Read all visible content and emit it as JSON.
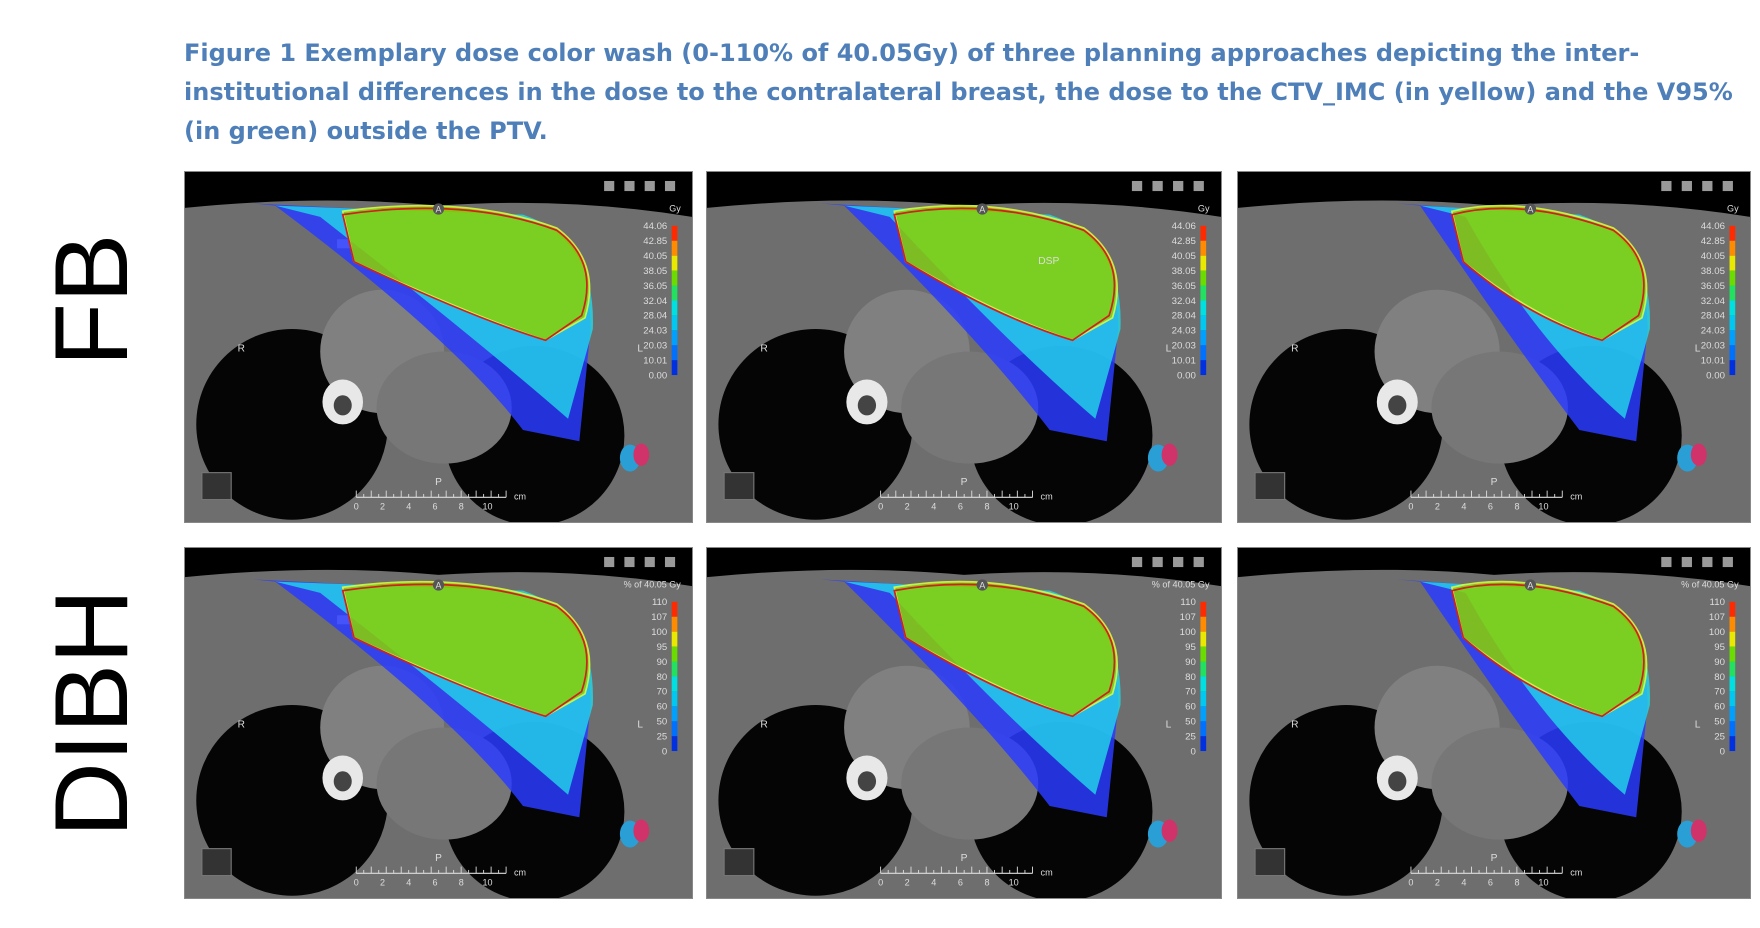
{
  "caption": "Figure 1 Exemplary dose color wash (0-110% of 40.05Gy) of three planning approaches depicting the inter-institutional differences in the dose to the contralateral breast, the dose to the CTV_IMC (in yellow) and the V95% (in green) outside the PTV.",
  "orientation": {
    "anterior": "A",
    "posterior": "P",
    "right": "R",
    "left": "L"
  },
  "scale": {
    "ticks": [
      "0",
      "2",
      "4",
      "6",
      "8",
      "10"
    ],
    "unit": "cm"
  },
  "rows": [
    {
      "label": "FB",
      "unit": "Gy",
      "legend": [
        "44.06",
        "42.85",
        "40.05",
        "38.05",
        "36.05",
        "32.04",
        "28.04",
        "24.03",
        "20.03",
        "10.01",
        "0.00"
      ]
    },
    {
      "label": "DIBH",
      "unit": "% of 40.05 Gy",
      "legend": [
        "110",
        "107",
        "100",
        "95",
        "90",
        "80",
        "70",
        "60",
        "50",
        "25",
        "0"
      ]
    }
  ],
  "annotations": [
    {
      "row": 0,
      "panel": 1,
      "text": "DSP"
    }
  ]
}
